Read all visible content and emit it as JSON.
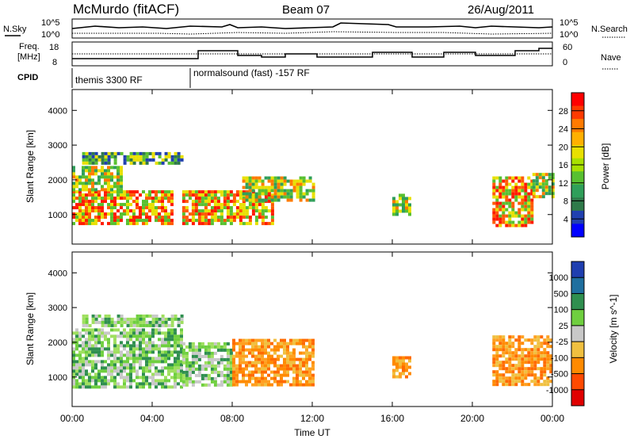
{
  "title": {
    "station": "McMurdo (fitACF)",
    "beam": "Beam 07",
    "date": "26/Aug/2011"
  },
  "summary_panels": {
    "nsky_label": "N.Sky",
    "nsearch_label": "N.Search",
    "nsky_ticks": [
      "10^5",
      "10^0"
    ],
    "nsearch_ticks": [
      "10^5",
      "10^0"
    ],
    "freq_label_line1": "Freq.",
    "freq_label_line2": "[MHz]",
    "freq_ticks": [
      "18",
      "8"
    ],
    "nave_label": "Nave",
    "nave_ticks": [
      "60",
      "0"
    ],
    "cpid_label": "CPID",
    "cpid_segments": [
      "themis 3300 RF",
      "normalsound (fast) -157 RF"
    ]
  },
  "chart_data": [
    {
      "type": "heatmap",
      "name": "power",
      "ylabel": "Slant Range [km]",
      "xlabel": "Time UT",
      "yticks": [
        1000,
        2000,
        3000,
        4000
      ],
      "ylim": [
        150,
        4600
      ],
      "xticks": [
        "00:00",
        "04:00",
        "08:00",
        "12:00",
        "16:00",
        "20:00",
        "00:00"
      ],
      "xlim_hours": [
        0,
        24
      ],
      "colorbar": {
        "label": "Power [dB]",
        "ticks": [
          "28",
          "24",
          "20",
          "16",
          "12",
          "8",
          "4"
        ],
        "colors": [
          "#ff0000",
          "#ff3a00",
          "#ff7a00",
          "#ffb000",
          "#e8e000",
          "#a8e000",
          "#58c030",
          "#2f9f5a",
          "#2f7a4a",
          "#2040b0",
          "#0000ff"
        ]
      },
      "echo_regions": [
        {
          "t0": 0.0,
          "t1": 5.0,
          "r0": 700,
          "r1": 1700,
          "level": "strong"
        },
        {
          "t0": 0.0,
          "t1": 2.5,
          "r0": 1700,
          "r1": 2400,
          "level": "medium"
        },
        {
          "t0": 0.5,
          "t1": 5.5,
          "r0": 2500,
          "r1": 2800,
          "level": "weak"
        },
        {
          "t0": 5.5,
          "t1": 10.0,
          "r0": 700,
          "r1": 1700,
          "level": "strong"
        },
        {
          "t0": 8.5,
          "t1": 12.0,
          "r0": 1400,
          "r1": 2100,
          "level": "medium"
        },
        {
          "t0": 16.0,
          "t1": 16.8,
          "r0": 1000,
          "r1": 1600,
          "level": "medium"
        },
        {
          "t0": 21.0,
          "t1": 23.0,
          "r0": 700,
          "r1": 2100,
          "level": "strong"
        },
        {
          "t0": 23.0,
          "t1": 24.0,
          "r0": 1500,
          "r1": 2200,
          "level": "medium"
        }
      ]
    },
    {
      "type": "heatmap",
      "name": "velocity",
      "ylabel": "Slant Range [km]",
      "xlabel": "Time UT",
      "yticks": [
        1000,
        2000,
        3000,
        4000
      ],
      "ylim": [
        150,
        4600
      ],
      "xticks": [
        "00:00",
        "04:00",
        "08:00",
        "12:00",
        "16:00",
        "20:00",
        "00:00"
      ],
      "xlim_hours": [
        0,
        24
      ],
      "colorbar": {
        "label": "Velocity [m s^-1]",
        "ticks": [
          "1000",
          "500",
          "100",
          "25",
          "-25",
          "-100",
          "-500",
          "-1000"
        ],
        "colors": [
          "#1f3fb0",
          "#1f6f9f",
          "#2f8f4f",
          "#6fcf3f",
          "#c8c8c8",
          "#f0c040",
          "#ff8a00",
          "#ff4a00",
          "#e00000"
        ]
      },
      "echo_regions": [
        {
          "t0": 0.0,
          "t1": 5.5,
          "r0": 700,
          "r1": 2400,
          "level": "green"
        },
        {
          "t0": 0.5,
          "t1": 5.5,
          "r0": 2500,
          "r1": 2800,
          "level": "green"
        },
        {
          "t0": 5.5,
          "t1": 8.0,
          "r0": 800,
          "r1": 2000,
          "level": "green"
        },
        {
          "t0": 8.0,
          "t1": 12.0,
          "r0": 800,
          "r1": 2100,
          "level": "orange"
        },
        {
          "t0": 16.0,
          "t1": 16.8,
          "r0": 1000,
          "r1": 1600,
          "level": "orange"
        },
        {
          "t0": 21.0,
          "t1": 24.0,
          "r0": 800,
          "r1": 2200,
          "level": "orange"
        }
      ]
    }
  ]
}
